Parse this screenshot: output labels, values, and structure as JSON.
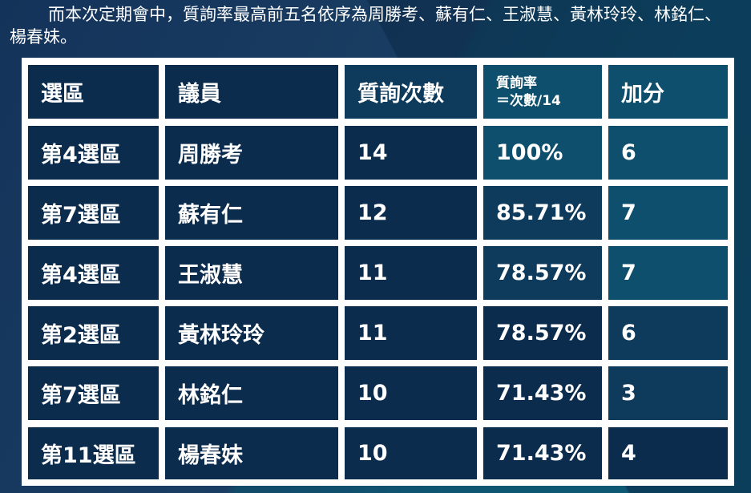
{
  "intro_text": "而本次定期會中，質詢率最高前五名依序為周勝考、蘇有仁、王淑慧、黃林玲玲、林銘仁、楊春妹。",
  "table": {
    "headers": {
      "district": "選區",
      "member": "議員",
      "count": "質詢次數",
      "rate_line1": "質詢率",
      "rate_line2": "＝次數/14",
      "bonus": "加分"
    },
    "rows": [
      {
        "district": "第4選區",
        "member": "周勝考",
        "count": "14",
        "rate": "100%",
        "bonus": "6"
      },
      {
        "district": "第7選區",
        "member": "蘇有仁",
        "count": "12",
        "rate": "85.71%",
        "bonus": "7"
      },
      {
        "district": "第4選區",
        "member": "王淑慧",
        "count": "11",
        "rate": "78.57%",
        "bonus": "7"
      },
      {
        "district": "第2選區",
        "member": "黃林玲玲",
        "count": "11",
        "rate": "78.57%",
        "bonus": "6"
      },
      {
        "district": "第7選區",
        "member": "林銘仁",
        "count": "10",
        "rate": "71.43%",
        "bonus": "3"
      },
      {
        "district": "第11選區",
        "member": "楊春妹",
        "count": "10",
        "rate": "71.43%",
        "bonus": "4"
      }
    ]
  },
  "colors": {
    "cell_dark": "#0c2c4e",
    "cell_mid": "#0e3a5c",
    "cell_teal": "#0d4f6c",
    "frame": "#ffffff",
    "text": "#ffffff"
  }
}
